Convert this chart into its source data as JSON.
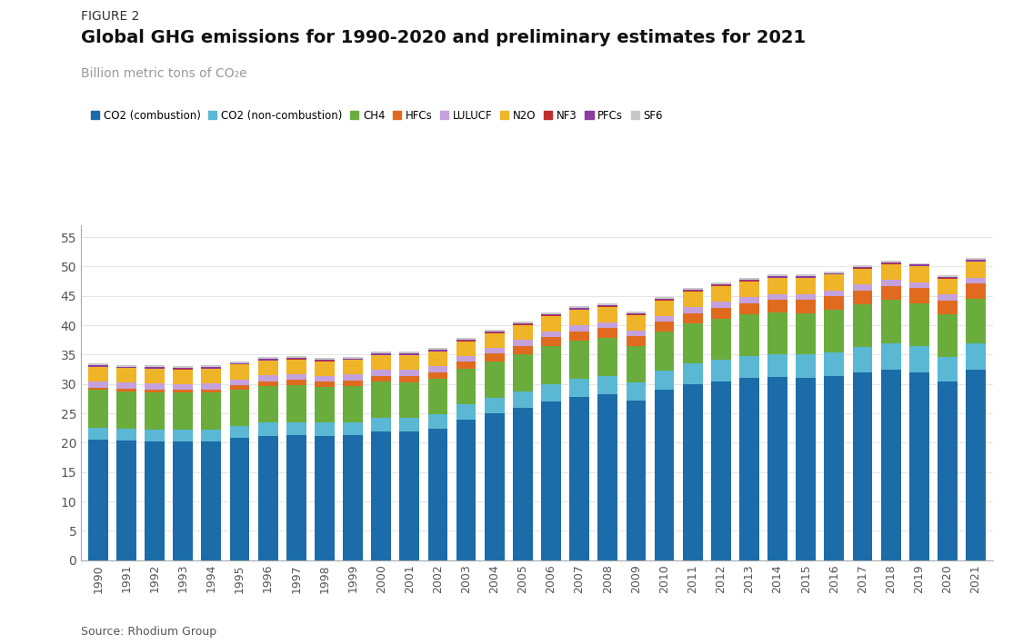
{
  "years": [
    1990,
    1991,
    1992,
    1993,
    1994,
    1995,
    1996,
    1997,
    1998,
    1999,
    2000,
    2001,
    2002,
    2003,
    2004,
    2005,
    2006,
    2007,
    2008,
    2009,
    2010,
    2011,
    2012,
    2013,
    2014,
    2015,
    2016,
    2017,
    2018,
    2019,
    2020,
    2021
  ],
  "series": {
    "CO2 (combustion)": [
      20.5,
      20.4,
      20.3,
      20.3,
      20.3,
      20.8,
      21.2,
      21.3,
      21.2,
      21.3,
      22.0,
      21.9,
      22.4,
      24.0,
      25.0,
      26.0,
      27.0,
      27.8,
      28.2,
      27.2,
      29.0,
      30.0,
      30.5,
      31.0,
      31.2,
      31.0,
      31.3,
      32.0,
      32.5,
      32.0,
      30.5,
      32.5
    ],
    "CO2 (non-combustion)": [
      2.0,
      2.0,
      2.0,
      2.0,
      2.0,
      2.1,
      2.2,
      2.2,
      2.2,
      2.2,
      2.3,
      2.3,
      2.4,
      2.5,
      2.7,
      2.8,
      3.0,
      3.1,
      3.2,
      3.0,
      3.3,
      3.5,
      3.7,
      3.8,
      3.9,
      4.0,
      4.1,
      4.3,
      4.4,
      4.4,
      4.1,
      4.5
    ],
    "CH4": [
      6.5,
      6.4,
      6.3,
      6.2,
      6.2,
      6.2,
      6.3,
      6.3,
      6.1,
      6.1,
      6.1,
      6.1,
      6.1,
      6.1,
      6.2,
      6.3,
      6.5,
      6.5,
      6.5,
      6.3,
      6.6,
      6.8,
      6.9,
      7.0,
      7.1,
      7.1,
      7.2,
      7.3,
      7.4,
      7.4,
      7.2,
      7.5
    ],
    "HFCs": [
      0.4,
      0.4,
      0.5,
      0.5,
      0.6,
      0.7,
      0.8,
      0.9,
      0.9,
      1.0,
      1.0,
      1.1,
      1.1,
      1.2,
      1.3,
      1.4,
      1.5,
      1.6,
      1.6,
      1.6,
      1.7,
      1.8,
      1.9,
      2.0,
      2.1,
      2.2,
      2.3,
      2.3,
      2.4,
      2.5,
      2.4,
      2.6
    ],
    "LULUCF": [
      1.0,
      1.0,
      1.0,
      1.0,
      1.0,
      1.0,
      1.0,
      1.0,
      1.0,
      1.0,
      1.0,
      1.0,
      1.0,
      1.0,
      1.0,
      1.0,
      1.0,
      1.0,
      1.0,
      1.0,
      1.0,
      1.0,
      1.0,
      1.0,
      1.0,
      1.0,
      1.0,
      1.0,
      1.0,
      1.0,
      1.0,
      1.0
    ],
    "N2O": [
      2.5,
      2.5,
      2.5,
      2.5,
      2.5,
      2.5,
      2.5,
      2.5,
      2.5,
      2.5,
      2.5,
      2.5,
      2.5,
      2.5,
      2.5,
      2.5,
      2.6,
      2.6,
      2.6,
      2.6,
      2.6,
      2.7,
      2.7,
      2.7,
      2.7,
      2.7,
      2.7,
      2.7,
      2.7,
      2.7,
      2.7,
      2.7
    ],
    "NF3": [
      0.05,
      0.05,
      0.05,
      0.05,
      0.05,
      0.05,
      0.06,
      0.06,
      0.06,
      0.07,
      0.07,
      0.08,
      0.08,
      0.09,
      0.1,
      0.1,
      0.1,
      0.1,
      0.1,
      0.1,
      0.1,
      0.1,
      0.1,
      0.1,
      0.1,
      0.1,
      0.1,
      0.1,
      0.1,
      0.1,
      0.1,
      0.1
    ],
    "PFCs": [
      0.2,
      0.2,
      0.2,
      0.2,
      0.2,
      0.2,
      0.2,
      0.2,
      0.2,
      0.2,
      0.2,
      0.2,
      0.2,
      0.2,
      0.2,
      0.2,
      0.2,
      0.2,
      0.2,
      0.2,
      0.2,
      0.2,
      0.2,
      0.2,
      0.2,
      0.2,
      0.2,
      0.2,
      0.2,
      0.2,
      0.2,
      0.2
    ],
    "SF6": [
      0.3,
      0.3,
      0.3,
      0.3,
      0.3,
      0.3,
      0.3,
      0.3,
      0.3,
      0.3,
      0.3,
      0.3,
      0.3,
      0.3,
      0.3,
      0.3,
      0.3,
      0.3,
      0.3,
      0.3,
      0.3,
      0.3,
      0.3,
      0.3,
      0.3,
      0.3,
      0.3,
      0.3,
      0.3,
      0.3,
      0.3,
      0.3
    ]
  },
  "colors": {
    "CO2 (combustion)": "#1B6CA8",
    "CO2 (non-combustion)": "#5BB8D4",
    "CH4": "#6AAD3D",
    "HFCs": "#E06B1F",
    "LULUCF": "#C4A0DC",
    "N2O": "#F0B429",
    "NF3": "#BE2E2E",
    "PFCs": "#8B3DA0",
    "SF6": "#C8C8C8"
  },
  "figure_label": "FIGURE 2",
  "title": "Global GHG emissions for 1990-2020 and preliminary estimates for 2021",
  "ylabel": "Billion metric tons of CO₂e",
  "ylim": [
    0,
    57
  ],
  "yticks": [
    0,
    5,
    10,
    15,
    20,
    25,
    30,
    35,
    40,
    45,
    50,
    55
  ],
  "source": "Source: Rhodium Group",
  "background_color": "#FFFFFF"
}
